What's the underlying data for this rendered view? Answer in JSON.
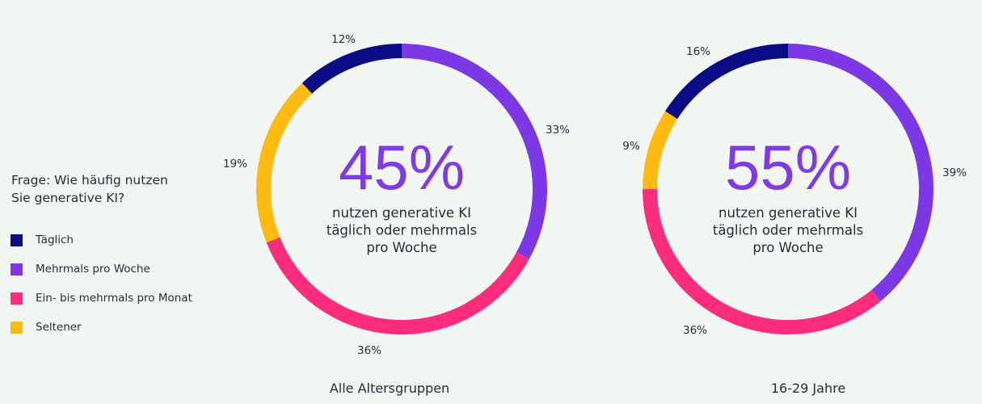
{
  "chart_data": [
    {
      "type": "pie",
      "variant": "donut",
      "title": "Alle Altersgruppen",
      "center_value": "45%",
      "center_text": [
        "nutzen generative KI",
        "täglich oder mehrmals",
        "pro Woche"
      ],
      "categories": [
        "Mehrmals pro Woche",
        "Ein- bis mehrmals pro Monat",
        "Seltener",
        "Täglich"
      ],
      "values": [
        33,
        36,
        19,
        12
      ],
      "labels": [
        "33%",
        "36%",
        "19%",
        "12%"
      ]
    },
    {
      "type": "pie",
      "variant": "donut",
      "title": "16-29 Jahre",
      "center_value": "55%",
      "center_text": [
        "nutzen generative KI",
        "täglich oder mehrmals",
        "pro Woche"
      ],
      "categories": [
        "Mehrmals pro Woche",
        "Ein- bis mehrmals pro Monat",
        "Seltener",
        "Täglich"
      ],
      "values": [
        39,
        36,
        9,
        16
      ],
      "labels": [
        "39%",
        "36%",
        "9%",
        "16%"
      ]
    }
  ],
  "legend": {
    "title": [
      "Frage: Wie häufig nutzen",
      "Sie generative KI?"
    ],
    "items": [
      {
        "label": "Täglich",
        "color": "#0b0b85"
      },
      {
        "label": "Mehrmals pro Woche",
        "color": "#7d38e6"
      },
      {
        "label": "Ein- bis mehrmals pro Monat",
        "color": "#fc2d7c"
      },
      {
        "label": "Seltener",
        "color": "#ffbb12"
      }
    ]
  },
  "colors": {
    "Mehrmals pro Woche": "#7d38e6",
    "Ein- bis mehrmals pro Monat": "#fc2d7c",
    "Seltener": "#ffbb12",
    "Täglich": "#0b0b85",
    "accent": "#7f3be8",
    "background": "#f3f7f4"
  }
}
